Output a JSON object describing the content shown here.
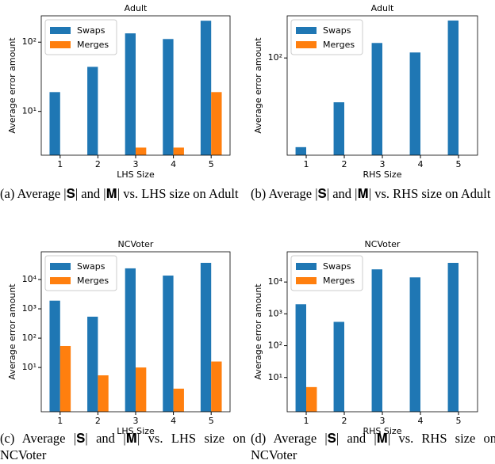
{
  "chart_data": [
    {
      "type": "bar",
      "title": "Adult",
      "xlabel": "LHS Size",
      "ylabel": "Average error amount",
      "caption": "(a) Average |𝐒| and |𝐌| vs. LHS size on Adult",
      "categories": [
        "1",
        "2",
        "3",
        "4",
        "5"
      ],
      "log_y": true,
      "legend": "upper left",
      "ylim": [
        2.33,
        240
      ],
      "yticks": [
        {
          "value": 10,
          "label": "10¹"
        },
        {
          "value": 100,
          "label": "10²"
        }
      ],
      "series": [
        {
          "name": "Swaps",
          "color": "#1f77b4",
          "values": [
            19,
            44,
            134,
            111,
            204
          ]
        },
        {
          "name": "Merges",
          "color": "#ff7f0e",
          "values": [
            null,
            null,
            3,
            3,
            19
          ]
        }
      ]
    },
    {
      "type": "bar",
      "title": "Adult",
      "xlabel": "RHS Size",
      "ylabel": "Average error amount",
      "caption": "(b) Average |𝐒| and |𝐌| vs. RHS size on Adult",
      "categories": [
        "1",
        "2",
        "3",
        "4",
        "5"
      ],
      "log_y": true,
      "legend": "upper left",
      "ylim": [
        15.7,
        223
      ],
      "yticks": [
        {
          "value": 100,
          "label": "10²"
        }
      ],
      "series": [
        {
          "name": "Swaps",
          "color": "#1f77b4",
          "values": [
            18.3,
            43,
            133,
            111,
            204
          ]
        },
        {
          "name": "Merges",
          "color": "#ff7f0e",
          "values": [
            null,
            null,
            null,
            null,
            null
          ]
        }
      ]
    },
    {
      "type": "bar",
      "title": "NCVoter",
      "xlabel": "LHS Size",
      "ylabel": "Average error amount",
      "caption": "(c) Average |𝐒| and |𝐌| vs. LHS size on NCVoter",
      "categories": [
        "1",
        "2",
        "3",
        "4",
        "5"
      ],
      "log_y": true,
      "legend": "upper left",
      "ylim": [
        0.31,
        88000
      ],
      "yticks": [
        {
          "value": 10,
          "label": "10¹"
        },
        {
          "value": 100,
          "label": "10²"
        },
        {
          "value": 1000,
          "label": "10³"
        },
        {
          "value": 10000,
          "label": "10⁴"
        }
      ],
      "series": [
        {
          "name": "Swaps",
          "color": "#1f77b4",
          "values": [
            1900,
            540,
            24000,
            13600,
            37000
          ]
        },
        {
          "name": "Merges",
          "color": "#ff7f0e",
          "values": [
            54,
            5.4,
            10,
            1.9,
            16
          ]
        }
      ]
    },
    {
      "type": "bar",
      "title": "NCVoter",
      "xlabel": "RHS Size",
      "ylabel": "Average error amount",
      "caption": "(d) Average |𝐒| and |𝐌| vs. RHS size on NCVoter",
      "categories": [
        "1",
        "2",
        "3",
        "4",
        "5"
      ],
      "log_y": true,
      "legend": "upper left",
      "ylim": [
        0.84,
        89000
      ],
      "yticks": [
        {
          "value": 10,
          "label": "10¹"
        },
        {
          "value": 100,
          "label": "10²"
        },
        {
          "value": 1000,
          "label": "10³"
        },
        {
          "value": 10000,
          "label": "10⁴"
        }
      ],
      "series": [
        {
          "name": "Swaps",
          "color": "#1f77b4",
          "values": [
            2000,
            560,
            25000,
            14000,
            40000
          ]
        },
        {
          "name": "Merges",
          "color": "#ff7f0e",
          "values": [
            5,
            null,
            null,
            null,
            null
          ]
        }
      ]
    }
  ]
}
